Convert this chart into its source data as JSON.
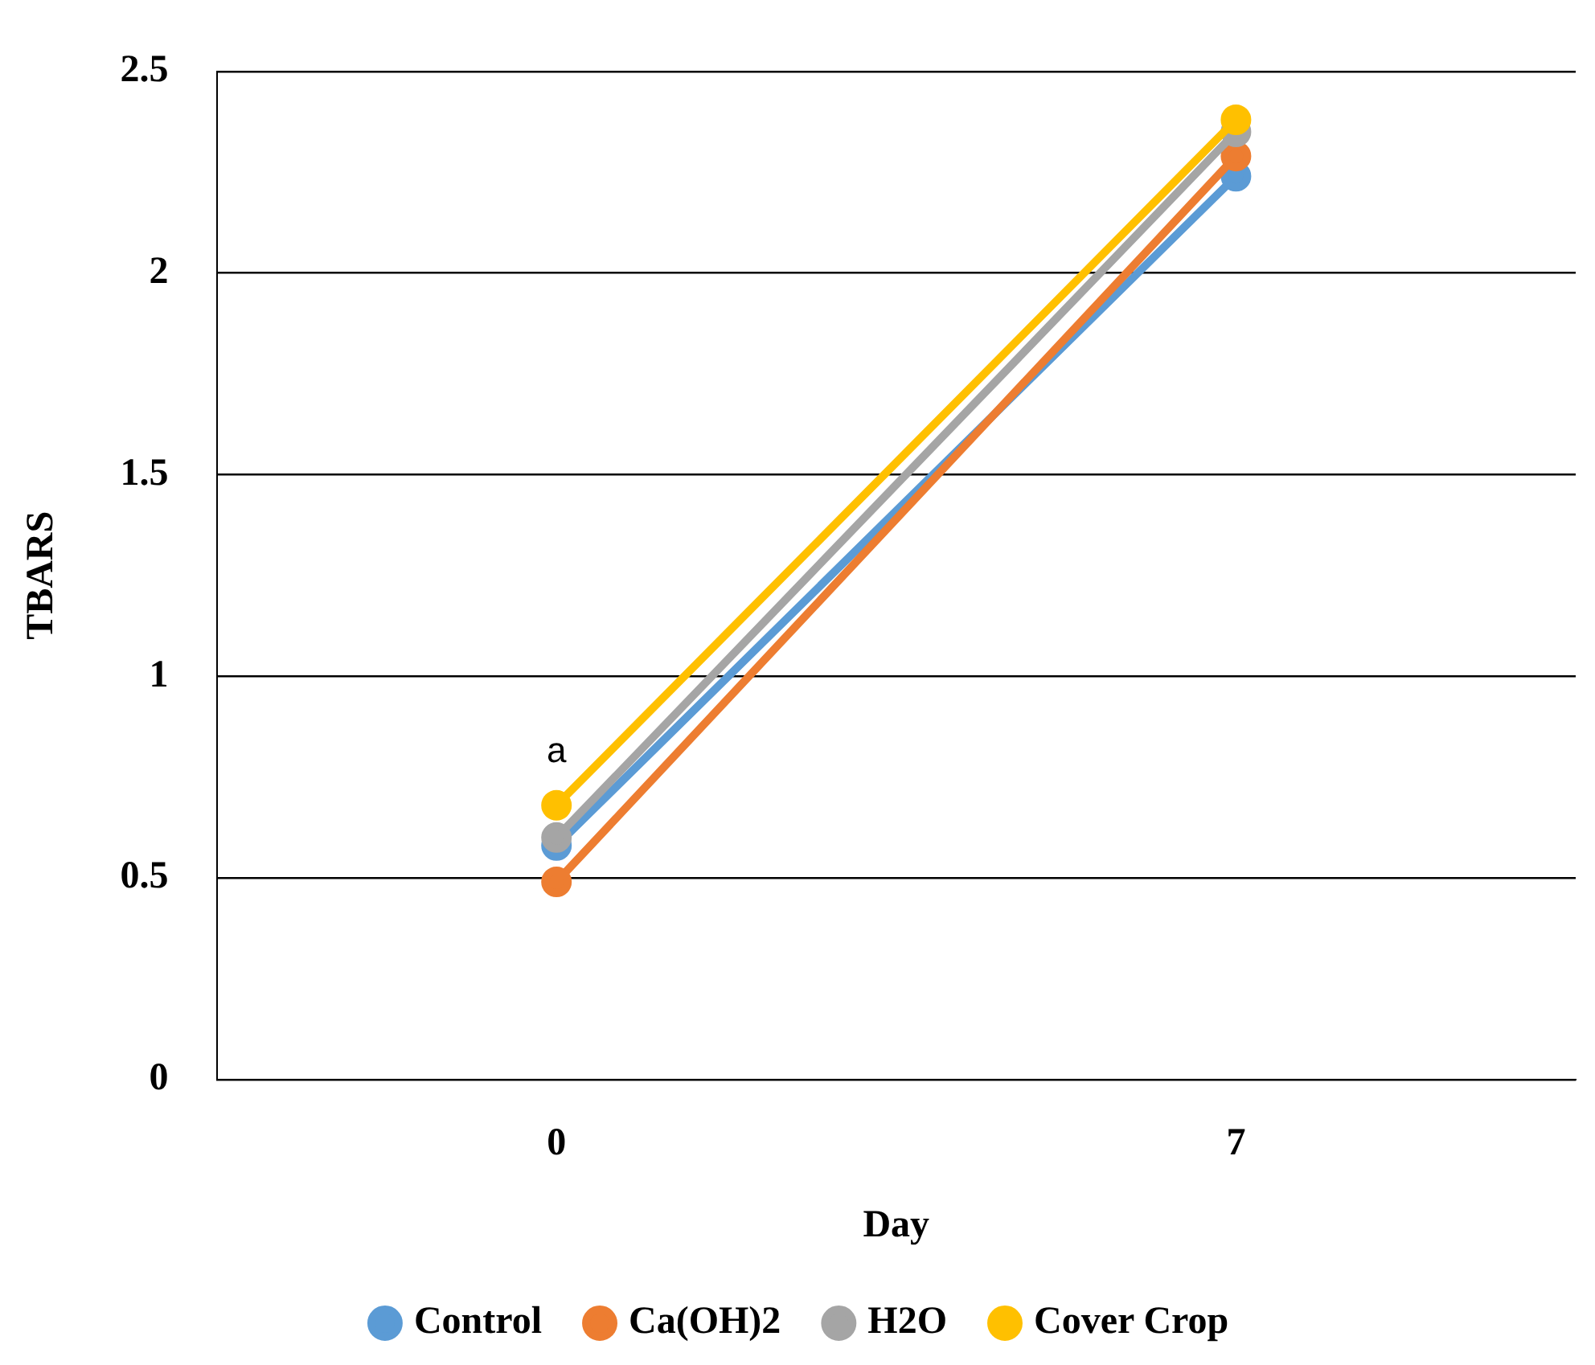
{
  "chart_data": {
    "type": "line",
    "xlabel": "Day",
    "ylabel": "TBARS",
    "categories": [
      "0",
      "7"
    ],
    "series": [
      {
        "name": "Control",
        "color": "#5b9bd5",
        "values": [
          0.58,
          2.24
        ]
      },
      {
        "name": "Ca(OH)2",
        "color": "#ed7d31",
        "values": [
          0.49,
          2.29
        ]
      },
      {
        "name": "H2O",
        "color": "#a5a5a5",
        "values": [
          0.6,
          2.35
        ]
      },
      {
        "name": "Cover Crop",
        "color": "#ffc000",
        "values": [
          0.68,
          2.38
        ]
      }
    ],
    "ylim": [
      0,
      2.5
    ],
    "yticks": [
      0,
      0.5,
      1,
      1.5,
      2,
      2.5
    ],
    "grid": "y",
    "legend": "bottom",
    "marker": "circle",
    "line_style": "solid",
    "annotations": [
      {
        "text": "a",
        "x": "0",
        "y": 0.68
      }
    ]
  }
}
